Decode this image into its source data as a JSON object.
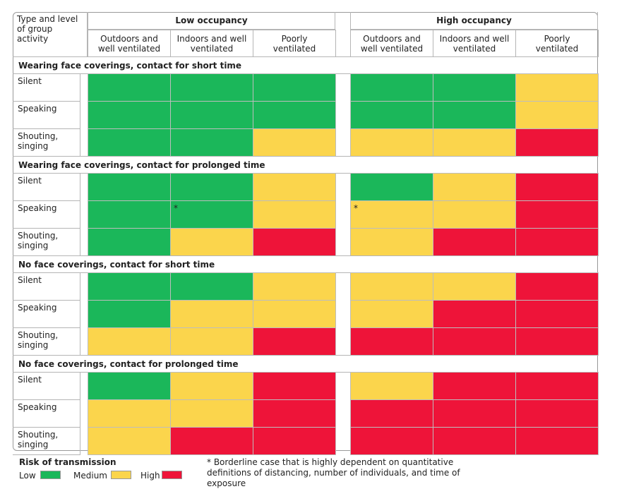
{
  "header": {
    "corner": "Type and level of group activity",
    "groups": [
      {
        "title": "Low occupancy",
        "columns": [
          "Outdoors and well ventilated",
          "Indoors and well ventilated",
          "Poorly ventilated"
        ]
      },
      {
        "title": "High occupancy",
        "columns": [
          "Outdoors and well ventilated",
          "Indoors and well ventilated",
          "Poorly ventilated"
        ]
      }
    ]
  },
  "sections": [
    {
      "title": "Wearing face coverings, contact for short time",
      "rows": [
        {
          "label": "Silent",
          "cells": [
            "low",
            "low",
            "low",
            "low",
            "low",
            "medium"
          ]
        },
        {
          "label": "Speaking",
          "cells": [
            "low",
            "low",
            "low",
            "low",
            "low",
            "medium"
          ]
        },
        {
          "label": "Shouting, singing",
          "cells": [
            "low",
            "low",
            "medium",
            "medium",
            "medium",
            "high"
          ]
        }
      ]
    },
    {
      "title": "Wearing face coverings, contact for prolonged time",
      "rows": [
        {
          "label": "Silent",
          "cells": [
            "low",
            "low",
            "medium",
            "low",
            "medium",
            "high"
          ]
        },
        {
          "label": "Speaking",
          "cells": [
            "low",
            {
              "risk": "low",
              "note": "*"
            },
            "medium",
            {
              "risk": "medium",
              "note": "*"
            },
            "medium",
            "high"
          ]
        },
        {
          "label": "Shouting, singing",
          "cells": [
            "low",
            "medium",
            "high",
            "medium",
            "high",
            "high"
          ]
        }
      ]
    },
    {
      "title": "No face coverings, contact for short time",
      "rows": [
        {
          "label": "Silent",
          "cells": [
            "low",
            "low",
            "medium",
            "medium",
            "medium",
            "high"
          ]
        },
        {
          "label": "Speaking",
          "cells": [
            "low",
            "medium",
            "medium",
            "medium",
            "high",
            "high"
          ]
        },
        {
          "label": "Shouting, singing",
          "cells": [
            "medium",
            "medium",
            "high",
            "high",
            "high",
            "high"
          ]
        }
      ]
    },
    {
      "title": "No face coverings, contact for prolonged time",
      "rows": [
        {
          "label": "Silent",
          "cells": [
            "low",
            "medium",
            "high",
            "medium",
            "high",
            "high"
          ]
        },
        {
          "label": "Speaking",
          "cells": [
            "medium",
            "medium",
            "high",
            "high",
            "high",
            "high"
          ]
        },
        {
          "label": "Shouting, singing",
          "cells": [
            "medium",
            "high",
            "high",
            "high",
            "high",
            "high"
          ]
        }
      ]
    }
  ],
  "legend": {
    "title": "Risk of transmission",
    "items": [
      {
        "key": "low",
        "label": "Low",
        "color": "#1bb75a"
      },
      {
        "key": "medium",
        "label": "Medium",
        "color": "#fbd54c"
      },
      {
        "key": "high",
        "label": "High",
        "color": "#ee1439"
      }
    ]
  },
  "footnote": "* Borderline case that is highly dependent on quantitative definitions of distancing, number of individuals, and time of exposure"
}
